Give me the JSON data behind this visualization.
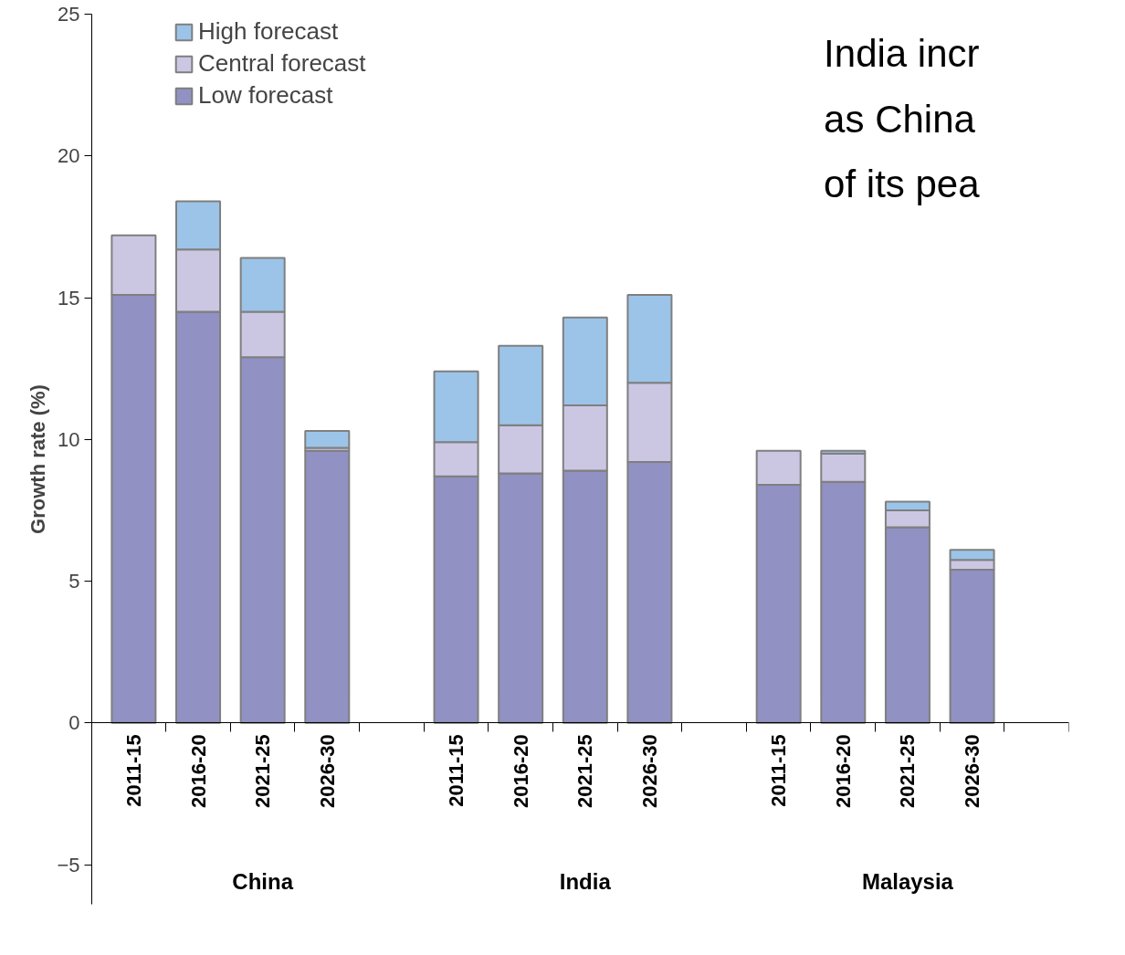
{
  "chart_data": {
    "type": "bar",
    "title": "India incr\nas China\nof its pea",
    "ylabel": "Growth rate (%)",
    "categories": [
      "2011-15",
      "2016-20",
      "2021-25",
      "2026-30",
      null,
      "2011-15",
      "2016-20",
      "2021-25",
      "2026-30",
      null,
      "2011-15",
      "2016-20",
      "2021-25",
      "2026-30",
      null
    ],
    "series": [
      {
        "name": "Low forecast",
        "color": "#9191c3",
        "values": [
          15.1,
          14.5,
          12.9,
          9.6,
          null,
          8.7,
          8.8,
          8.9,
          9.2,
          null,
          8.4,
          8.5,
          6.9,
          5.4,
          null
        ]
      },
      {
        "name": "Central forecast",
        "color": "#cbc7e3",
        "values": [
          2.1,
          2.2,
          1.6,
          0.1,
          null,
          1.2,
          1.7,
          2.3,
          2.8,
          null,
          1.2,
          1.0,
          0.6,
          0.35,
          null
        ]
      },
      {
        "name": "High forecast",
        "color": "#9cc4e8",
        "values": [
          null,
          1.7,
          1.9,
          0.6,
          null,
          2.5,
          2.8,
          3.1,
          3.1,
          null,
          null,
          0.1,
          0.3,
          0.35,
          null
        ]
      }
    ],
    "stacked": true,
    "ylim": [
      -6.4,
      25
    ],
    "yticks": [
      -5,
      0,
      5,
      10,
      15,
      20,
      25
    ],
    "annotations": [
      "China",
      "India",
      "Malaysia"
    ],
    "legend": "top left"
  }
}
